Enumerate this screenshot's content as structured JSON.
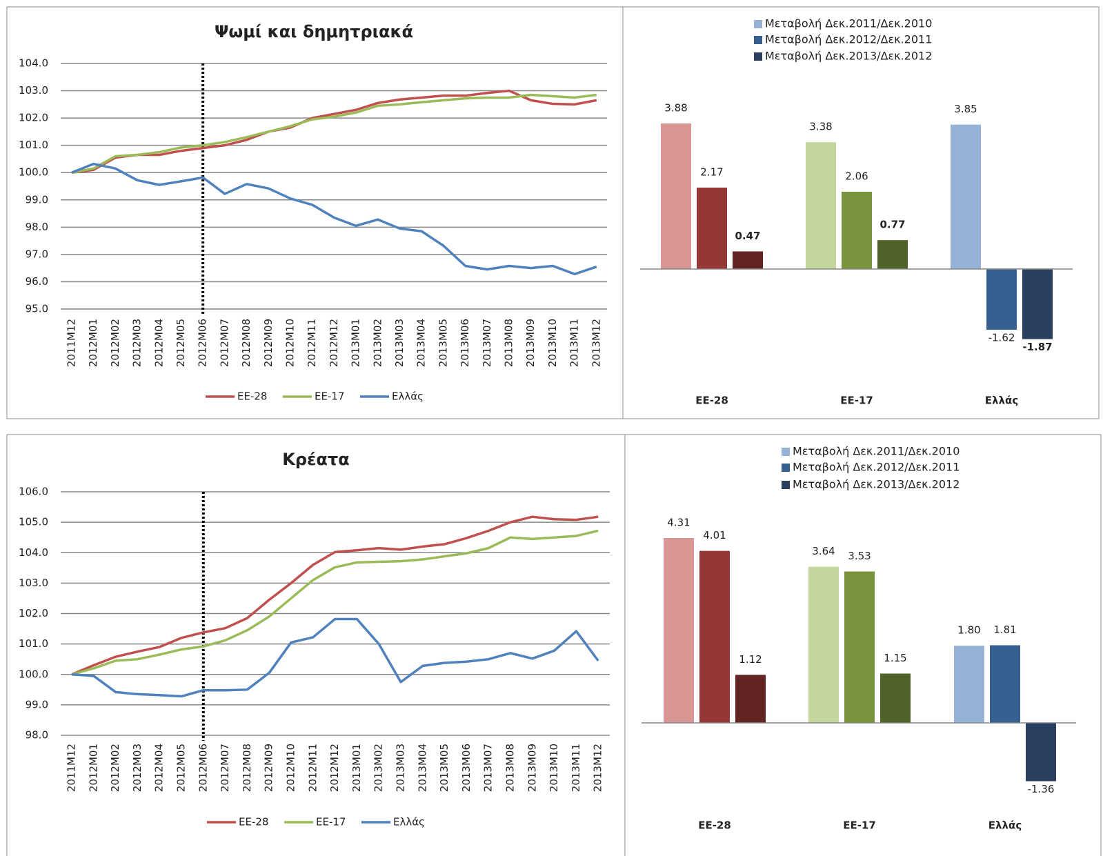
{
  "chart_data": [
    {
      "type": "line",
      "title": "Ψωμί και δημητριακά",
      "categories": [
        "2011M12",
        "2012M01",
        "2012M02",
        "2012M03",
        "2012M04",
        "2012M05",
        "2012M06",
        "2012M07",
        "2012M08",
        "2012M09",
        "2012M10",
        "2012M11",
        "2012M12",
        "2013M01",
        "2013M02",
        "2013M03",
        "2013M04",
        "2013M05",
        "2013M06",
        "2013M07",
        "2013M08",
        "2013M09",
        "2013M10",
        "2013M11",
        "2013M12"
      ],
      "series": [
        {
          "name": "ΕΕ-28",
          "color": "#c0504d",
          "values": [
            100.0,
            100.1,
            100.55,
            100.65,
            100.65,
            100.8,
            100.9,
            101.0,
            101.2,
            101.5,
            101.65,
            102.0,
            102.15,
            102.3,
            102.55,
            102.68,
            102.75,
            102.82,
            102.82,
            102.92,
            103.0,
            102.65,
            102.52,
            102.5,
            102.65
          ]
        },
        {
          "name": "ΕΕ-17",
          "color": "#9bbb59",
          "values": [
            100.0,
            100.15,
            100.6,
            100.65,
            100.75,
            100.92,
            101.0,
            101.12,
            101.3,
            101.5,
            101.7,
            101.95,
            102.05,
            102.2,
            102.45,
            102.5,
            102.58,
            102.65,
            102.72,
            102.75,
            102.75,
            102.85,
            102.8,
            102.75,
            102.85
          ]
        },
        {
          "name": "Ελλάς",
          "color": "#4f81bd",
          "values": [
            100.0,
            100.32,
            100.15,
            99.72,
            99.55,
            99.68,
            99.82,
            99.22,
            99.58,
            99.42,
            99.05,
            98.82,
            98.35,
            98.05,
            98.28,
            97.95,
            97.85,
            97.32,
            96.58,
            96.45,
            96.58,
            96.5,
            96.58,
            96.28,
            96.55
          ]
        }
      ],
      "ylim": [
        95,
        104
      ],
      "yticks": [
        {
          "value": 95,
          "label": "95.0"
        },
        {
          "value": 96,
          "label": "96.0"
        },
        {
          "value": 97,
          "label": "97.0"
        },
        {
          "value": 98,
          "label": "98.0"
        },
        {
          "value": 99,
          "label": "99.0"
        },
        {
          "value": 100,
          "label": "100.0"
        },
        {
          "value": 101,
          "label": "101.0"
        },
        {
          "value": 102,
          "label": "102.0"
        },
        {
          "value": 103,
          "label": "103.0"
        },
        {
          "value": 104,
          "label": "104.0"
        }
      ],
      "grid": true,
      "vline_x": "2012M06",
      "legend": "bottom"
    },
    {
      "type": "bar",
      "categories": [
        "ΕΕ-28",
        "ΕΕ-17",
        "Ελλάς"
      ],
      "category_colors": [
        [
          "#d99694",
          "#953735",
          "#632523"
        ],
        [
          "#c3d69b",
          "#77933c",
          "#4f6228"
        ],
        [
          "#95b3d7",
          "#376092",
          "#2a3f5f"
        ]
      ],
      "series": [
        {
          "name": "Μεταβολή Δεκ.2011/Δεκ.2010",
          "color": "#95b3d7",
          "values": [
            3.88,
            3.38,
            3.85
          ],
          "value_labels": [
            "3.88",
            "3.38",
            "3.85"
          ],
          "bold": false
        },
        {
          "name": "Μεταβολή Δεκ.2012/Δεκ.2011",
          "color": "#376092",
          "values": [
            2.17,
            2.06,
            -1.62
          ],
          "value_labels": [
            "2.17",
            "2.06",
            "-1.62"
          ],
          "bold": false
        },
        {
          "name": "Μεταβολή Δεκ.2013/Δεκ.2012",
          "color": "#2a3f5f",
          "values": [
            0.47,
            0.77,
            -1.87
          ],
          "value_labels": [
            "0.47",
            "0.77",
            "-1.87"
          ],
          "bold": true
        }
      ],
      "legend": "top"
    },
    {
      "type": "line",
      "title": "Κρέατα",
      "categories": [
        "2011M12",
        "2012M01",
        "2012M02",
        "2012M03",
        "2012M04",
        "2012M05",
        "2012M06",
        "2012M07",
        "2012M08",
        "2012M09",
        "2012M10",
        "2012M11",
        "2012M12",
        "2013M01",
        "2013M02",
        "2013M03",
        "2013M04",
        "2013M05",
        "2013M06",
        "2013M07",
        "2013M08",
        "2013M09",
        "2013M10",
        "2013M11",
        "2013M12"
      ],
      "series": [
        {
          "name": "ΕΕ-28",
          "color": "#c0504d",
          "values": [
            100.0,
            100.3,
            100.58,
            100.75,
            100.9,
            101.2,
            101.38,
            101.52,
            101.85,
            102.45,
            103.0,
            103.6,
            104.02,
            104.08,
            104.15,
            104.1,
            104.2,
            104.28,
            104.48,
            104.72,
            105.0,
            105.18,
            105.1,
            105.08,
            105.18
          ]
        },
        {
          "name": "ΕΕ-17",
          "color": "#9bbb59",
          "values": [
            100.0,
            100.2,
            100.45,
            100.5,
            100.65,
            100.82,
            100.92,
            101.12,
            101.45,
            101.9,
            102.5,
            103.1,
            103.52,
            103.68,
            103.7,
            103.72,
            103.78,
            103.88,
            103.98,
            104.15,
            104.5,
            104.45,
            104.5,
            104.55,
            104.72
          ]
        },
        {
          "name": "Ελλάς",
          "color": "#4f81bd",
          "values": [
            100.0,
            99.95,
            99.42,
            99.35,
            99.32,
            99.28,
            99.48,
            99.48,
            99.5,
            100.05,
            101.05,
            101.22,
            101.82,
            101.82,
            101.0,
            99.75,
            100.28,
            100.38,
            100.42,
            100.5,
            100.7,
            100.52,
            100.78,
            101.42,
            100.45
          ]
        }
      ],
      "ylim": [
        98,
        106
      ],
      "yticks": [
        {
          "value": 98,
          "label": "98.0"
        },
        {
          "value": 99,
          "label": "99.0"
        },
        {
          "value": 100,
          "label": "100.0"
        },
        {
          "value": 101,
          "label": "101.0"
        },
        {
          "value": 102,
          "label": "102.0"
        },
        {
          "value": 103,
          "label": "103.0"
        },
        {
          "value": 104,
          "label": "104.0"
        },
        {
          "value": 105,
          "label": "105.0"
        },
        {
          "value": 106,
          "label": "106.0"
        }
      ],
      "grid": true,
      "vline_x": "2012M06",
      "legend": "bottom"
    },
    {
      "type": "bar",
      "categories": [
        "ΕΕ-28",
        "ΕΕ-17",
        "Ελλάς"
      ],
      "category_colors": [
        [
          "#d99694",
          "#953735",
          "#632523"
        ],
        [
          "#c3d69b",
          "#77933c",
          "#4f6228"
        ],
        [
          "#95b3d7",
          "#376092",
          "#2a3f5f"
        ]
      ],
      "series": [
        {
          "name": "Μεταβολή Δεκ.2011/Δεκ.2010",
          "color": "#95b3d7",
          "values": [
            4.31,
            3.64,
            1.8
          ],
          "value_labels": [
            "4.31",
            "3.64",
            "1.80"
          ],
          "bold": false
        },
        {
          "name": "Μεταβολή Δεκ.2012/Δεκ.2011",
          "color": "#376092",
          "values": [
            4.01,
            3.53,
            1.81
          ],
          "value_labels": [
            "4.01",
            "3.53",
            "1.81"
          ],
          "bold": false
        },
        {
          "name": "Μεταβολή Δεκ.2013/Δεκ.2012",
          "color": "#2a3f5f",
          "values": [
            1.12,
            1.15,
            -1.36
          ],
          "value_labels": [
            "1.12",
            "1.15",
            "-1.36"
          ],
          "bold": false
        }
      ],
      "legend": "top"
    }
  ]
}
